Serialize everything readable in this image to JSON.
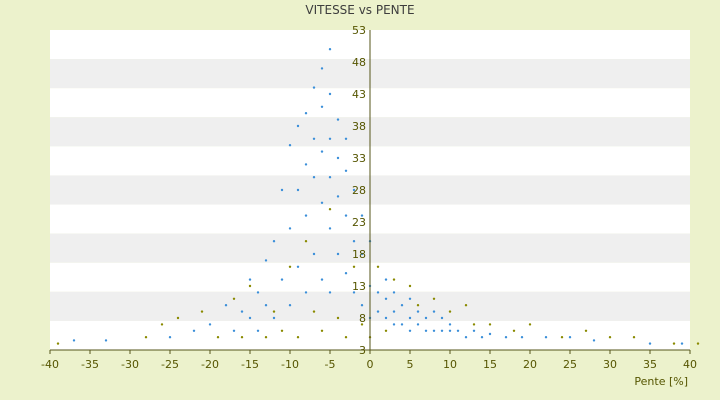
{
  "chart_data": {
    "type": "scatter",
    "title": "VITESSE vs PENTE",
    "xlabel": "Pente [%]",
    "ylabel": "",
    "xlim": [
      -40,
      40
    ],
    "ylim": [
      3,
      53
    ],
    "x_ticks": [
      "-40",
      "-35",
      "-30",
      "-25",
      "-20",
      "-15",
      "-10",
      "-5",
      "0",
      "5",
      "10",
      "15",
      "20",
      "25",
      "30",
      "35",
      "40"
    ],
    "y_ticks": [
      "3",
      "8",
      "13",
      "18",
      "23",
      "28",
      "33",
      "38",
      "43",
      "48",
      "53"
    ],
    "grid": "horizontal alternating bands",
    "legend": "none",
    "colors": {
      "series_a": "#3b8fd9",
      "series_b": "#8a8a00",
      "background": "#ecf2cc",
      "band_light": "#ffffff",
      "band_dark": "#efefef",
      "axis": "#55551a"
    },
    "series": [
      {
        "color": "#3b8fd9",
        "points": [
          [
            -37,
            4.5
          ],
          [
            -33,
            4.5
          ],
          [
            -25,
            5
          ],
          [
            -22,
            6
          ],
          [
            -20,
            7
          ],
          [
            -18,
            10
          ],
          [
            -17,
            6
          ],
          [
            -16,
            9
          ],
          [
            -15,
            8
          ],
          [
            -15,
            14
          ],
          [
            -14,
            6
          ],
          [
            -14,
            12
          ],
          [
            -13,
            10
          ],
          [
            -13,
            17
          ],
          [
            -12,
            8
          ],
          [
            -12,
            20
          ],
          [
            -11,
            14
          ],
          [
            -11,
            28
          ],
          [
            -10,
            10
          ],
          [
            -10,
            22
          ],
          [
            -10,
            35
          ],
          [
            -9,
            16
          ],
          [
            -9,
            28
          ],
          [
            -9,
            38
          ],
          [
            -8,
            12
          ],
          [
            -8,
            24
          ],
          [
            -8,
            32
          ],
          [
            -8,
            40
          ],
          [
            -7,
            18
          ],
          [
            -7,
            30
          ],
          [
            -7,
            36
          ],
          [
            -7,
            44
          ],
          [
            -6,
            14
          ],
          [
            -6,
            26
          ],
          [
            -6,
            34
          ],
          [
            -6,
            41
          ],
          [
            -6,
            47
          ],
          [
            -5,
            12
          ],
          [
            -5,
            22
          ],
          [
            -5,
            30
          ],
          [
            -5,
            36
          ],
          [
            -5,
            43
          ],
          [
            -5,
            50
          ],
          [
            -4,
            18
          ],
          [
            -4,
            27
          ],
          [
            -4,
            33
          ],
          [
            -4,
            39
          ],
          [
            -3,
            15
          ],
          [
            -3,
            24
          ],
          [
            -3,
            31
          ],
          [
            -3,
            36
          ],
          [
            -2,
            12
          ],
          [
            -2,
            20
          ],
          [
            -2,
            28
          ],
          [
            -1,
            10
          ],
          [
            -1,
            18
          ],
          [
            -1,
            24
          ],
          [
            0,
            8
          ],
          [
            0,
            13
          ],
          [
            0,
            20
          ],
          [
            1,
            9
          ],
          [
            1,
            12
          ],
          [
            2,
            8
          ],
          [
            2,
            11
          ],
          [
            2,
            14
          ],
          [
            3,
            7
          ],
          [
            3,
            9
          ],
          [
            3,
            12
          ],
          [
            4,
            7
          ],
          [
            4,
            10
          ],
          [
            5,
            6
          ],
          [
            5,
            8
          ],
          [
            5,
            11
          ],
          [
            6,
            7
          ],
          [
            6,
            9
          ],
          [
            7,
            6
          ],
          [
            7,
            8
          ],
          [
            8,
            6
          ],
          [
            8,
            9
          ],
          [
            9,
            6
          ],
          [
            9,
            8
          ],
          [
            10,
            6
          ],
          [
            10,
            7
          ],
          [
            11,
            6
          ],
          [
            12,
            5
          ],
          [
            13,
            6
          ],
          [
            14,
            5
          ],
          [
            15,
            5.5
          ],
          [
            17,
            5
          ],
          [
            19,
            5
          ],
          [
            22,
            5
          ],
          [
            25,
            5
          ],
          [
            28,
            4.5
          ],
          [
            35,
            4
          ],
          [
            39,
            4
          ]
        ]
      },
      {
        "color": "#8a8a00",
        "points": [
          [
            -39,
            4
          ],
          [
            -28,
            5
          ],
          [
            -26,
            7
          ],
          [
            -24,
            8
          ],
          [
            -21,
            9
          ],
          [
            -19,
            5
          ],
          [
            -17,
            11
          ],
          [
            -16,
            5
          ],
          [
            -15,
            13
          ],
          [
            -13,
            5
          ],
          [
            -12,
            9
          ],
          [
            -11,
            6
          ],
          [
            -10,
            16
          ],
          [
            -9,
            5
          ],
          [
            -8,
            20
          ],
          [
            -7,
            9
          ],
          [
            -6,
            6
          ],
          [
            -5,
            25
          ],
          [
            -4,
            8
          ],
          [
            -3,
            5
          ],
          [
            -2,
            16
          ],
          [
            -1,
            7
          ],
          [
            0,
            5
          ],
          [
            1,
            16
          ],
          [
            2,
            6
          ],
          [
            3,
            14
          ],
          [
            5,
            13
          ],
          [
            6,
            10
          ],
          [
            8,
            11
          ],
          [
            10,
            9
          ],
          [
            12,
            10
          ],
          [
            13,
            7
          ],
          [
            15,
            7
          ],
          [
            18,
            6
          ],
          [
            20,
            7
          ],
          [
            24,
            5
          ],
          [
            27,
            6
          ],
          [
            30,
            5
          ],
          [
            33,
            5
          ],
          [
            38,
            4
          ],
          [
            41,
            4
          ]
        ]
      }
    ]
  }
}
